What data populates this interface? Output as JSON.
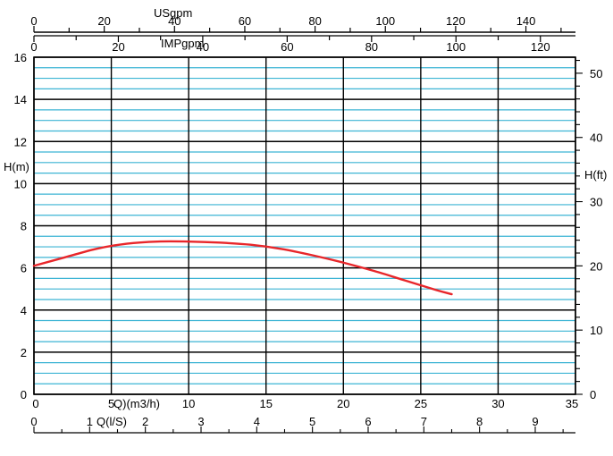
{
  "chart_data": {
    "type": "line",
    "title": "",
    "top_axis_us": {
      "label": "USgpm",
      "ticks": [
        "0",
        "20",
        "40",
        "60",
        "80",
        "100",
        "120",
        "140"
      ],
      "values": [
        0,
        20,
        40,
        60,
        80,
        100,
        120,
        140
      ]
    },
    "top_axis_imp": {
      "label": "IMPgpm",
      "ticks": [
        "0",
        "20",
        "40",
        "60",
        "80",
        "100",
        "120"
      ],
      "values": [
        0,
        20,
        40,
        60,
        80,
        100,
        120
      ]
    },
    "bottom_axis_m3h": {
      "label": "Q)(m3/h)",
      "ticks": [
        "0",
        "5",
        "10",
        "15",
        "20",
        "25",
        "30",
        "35"
      ],
      "values": [
        0,
        5,
        10,
        15,
        20,
        25,
        30,
        35
      ]
    },
    "bottom_axis_ls": {
      "label": "Q(l/S)",
      "ticks": [
        "0",
        "1",
        "2",
        "3",
        "4",
        "5",
        "6",
        "7",
        "8",
        "9"
      ],
      "values": [
        0,
        1,
        2,
        3,
        4,
        5,
        6,
        7,
        8,
        9
      ]
    },
    "left_axis": {
      "label": "H(m)",
      "ticks": [
        "0",
        "2",
        "4",
        "6",
        "8",
        "10",
        "12",
        "14",
        "16"
      ],
      "values": [
        0,
        2,
        4,
        6,
        8,
        10,
        12,
        14,
        16
      ],
      "ylim": [
        0,
        16
      ]
    },
    "right_axis": {
      "label": "H(ft)",
      "ticks": [
        "0",
        "10",
        "20",
        "30",
        "40",
        "50"
      ],
      "values": [
        0,
        10,
        20,
        30,
        40,
        50
      ]
    },
    "xlim": [
      0,
      35
    ],
    "grid": true,
    "series": [
      {
        "color": "#e8262a",
        "x": [
          0,
          2,
          4,
          6,
          8,
          10,
          12,
          14,
          16,
          18,
          20,
          22,
          24,
          26,
          27
        ],
        "y": [
          6.1,
          6.5,
          6.9,
          7.15,
          7.25,
          7.25,
          7.2,
          7.1,
          6.9,
          6.6,
          6.25,
          5.85,
          5.4,
          4.95,
          4.75
        ]
      }
    ],
    "colors": {
      "major_grid": "#000000",
      "minor_grid": "#3cb4d4",
      "curve": "#e8262a"
    }
  }
}
